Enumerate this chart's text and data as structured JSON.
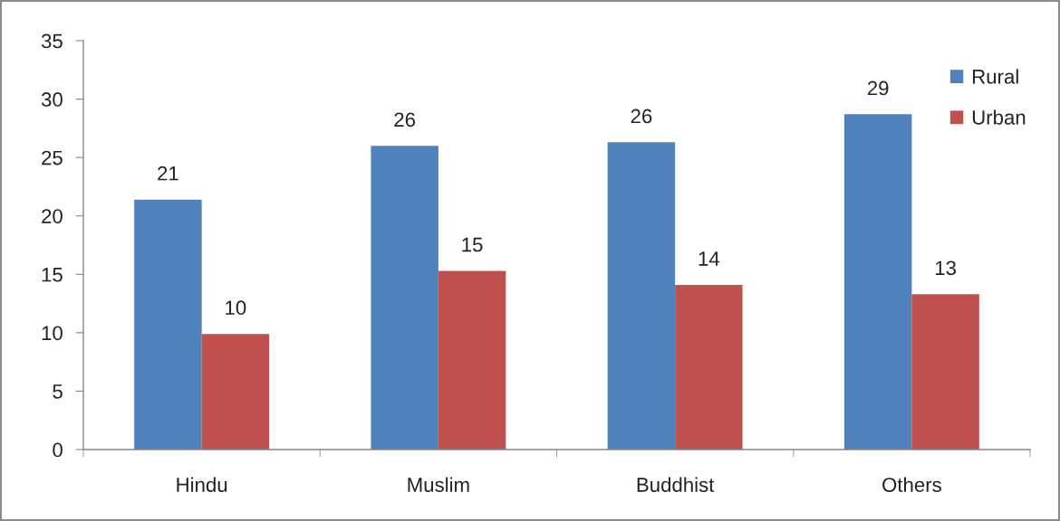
{
  "chart_data": {
    "type": "bar",
    "categories": [
      "Hindu",
      "Muslim",
      "Buddhist",
      "Others"
    ],
    "series": [
      {
        "name": "Rural",
        "color": "#4f81bd",
        "values": [
          21.4,
          26.0,
          26.3,
          28.7
        ],
        "value_labels": [
          "21",
          "26",
          "26",
          "29"
        ]
      },
      {
        "name": "Urban",
        "color": "#c0504d",
        "values": [
          9.9,
          15.3,
          14.1,
          13.3
        ],
        "value_labels": [
          "10",
          "15",
          "14",
          "13"
        ]
      }
    ],
    "ylim": [
      0,
      35
    ],
    "yticks": [
      0,
      5,
      10,
      15,
      20,
      25,
      30,
      35
    ],
    "grid": false,
    "legend": "top right"
  }
}
